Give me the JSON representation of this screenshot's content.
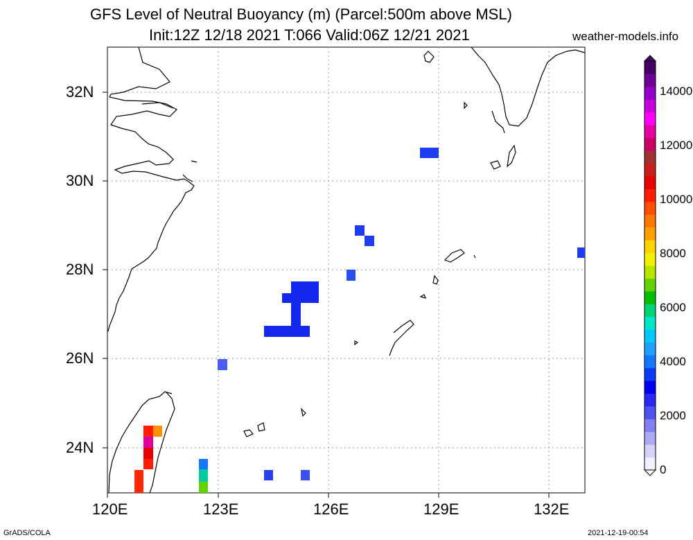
{
  "title_line1": "GFS Level of Neutral Buoyancy (m) (Parcel:500m above MSL)",
  "title_line2": "Init:12Z 12/18 2021 T:066 Valid:06Z 12/21 2021",
  "site": "weather-models.info",
  "footer_left": "GrADS/COLA",
  "footer_right": "2021-12-19-00:54",
  "lat_labels": [
    "32N",
    "30N",
    "28N",
    "26N",
    "24N"
  ],
  "lon_labels": [
    "120E",
    "123E",
    "126E",
    "129E",
    "132E"
  ],
  "colorbar": {
    "labels": [
      "14000",
      "12000",
      "10000",
      "8000",
      "6000",
      "4000",
      "2000",
      "0"
    ],
    "colors": [
      "#f0f0ff",
      "#d2d2fa",
      "#aaaaf5",
      "#8080f0",
      "#5050f0",
      "#2828f0",
      "#0000f0",
      "#0a3cf5",
      "#1478ff",
      "#1ea0ff",
      "#00c8ff",
      "#00e6c8",
      "#00d278",
      "#00be00",
      "#64d200",
      "#b4e600",
      "#f0f000",
      "#ffd200",
      "#ffa000",
      "#ff7800",
      "#ff5000",
      "#ff1e00",
      "#e60000",
      "#c81e1e",
      "#a03232",
      "#c80064",
      "#e600a0",
      "#ff00ff",
      "#c800dc",
      "#9600c8",
      "#6e0096",
      "#460064"
    ]
  }
}
